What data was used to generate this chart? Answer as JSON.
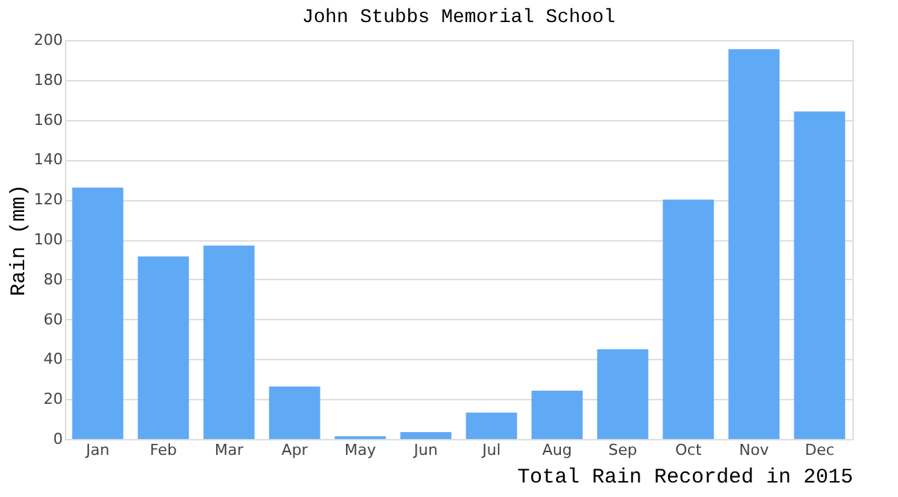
{
  "chart_data": {
    "type": "bar",
    "title": "John Stubbs Memorial School",
    "xlabel": "Total Rain Recorded in 2015",
    "ylabel": "Rain (mm)",
    "categories": [
      "Jan",
      "Feb",
      "Mar",
      "Apr",
      "May",
      "Jun",
      "Jul",
      "Aug",
      "Sep",
      "Oct",
      "Nov",
      "Dec"
    ],
    "values": [
      126,
      91.5,
      97,
      26.3,
      1.4,
      3.5,
      13.2,
      24.2,
      45,
      120,
      195.4,
      164.2
    ],
    "color": "#60a9f5",
    "ylim": [
      0,
      200
    ],
    "yticks": [
      0,
      20,
      40,
      60,
      80,
      100,
      120,
      140,
      160,
      180,
      200
    ],
    "grid": "y"
  }
}
